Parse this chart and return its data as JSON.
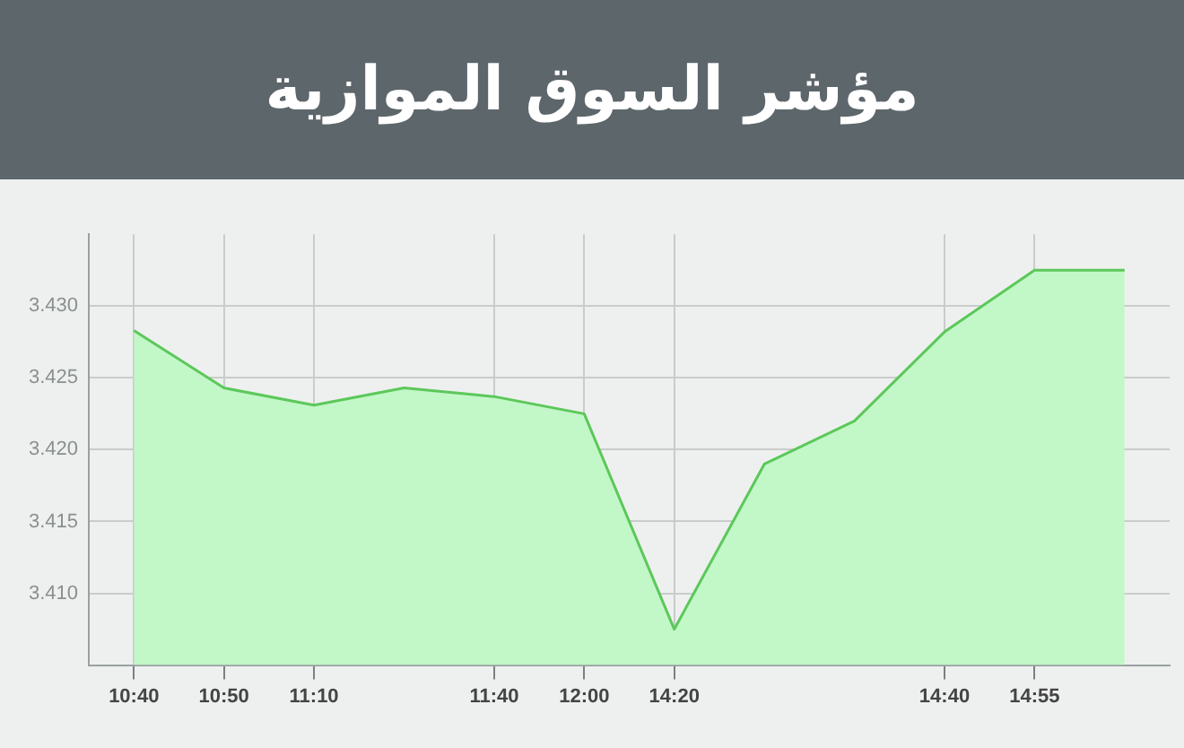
{
  "chart_data": {
    "type": "area",
    "title": "مؤشر السوق الموازية",
    "categories": [
      "10:40",
      "10:50",
      "11:10",
      null,
      "11:40",
      "12:00",
      "14:20",
      null,
      null,
      "14:40",
      "14:55",
      null
    ],
    "series": [
      {
        "color": "#5cc85a",
        "values": [
          3.4283,
          3.4243,
          3.4231,
          3.4243,
          3.4237,
          3.4225,
          3.4075,
          3.419,
          3.422,
          3.4282,
          3.4325,
          3.4325
        ]
      }
    ],
    "ylim": [
      3.405,
      3.435
    ],
    "yticks": [
      {
        "value": 3.41,
        "label": "3.410"
      },
      {
        "value": 3.415,
        "label": "3.415"
      },
      {
        "value": 3.42,
        "label": "3.420"
      },
      {
        "value": 3.425,
        "label": "3.425"
      },
      {
        "value": 3.43,
        "label": "3.430"
      }
    ],
    "grid": true,
    "legend": false
  }
}
